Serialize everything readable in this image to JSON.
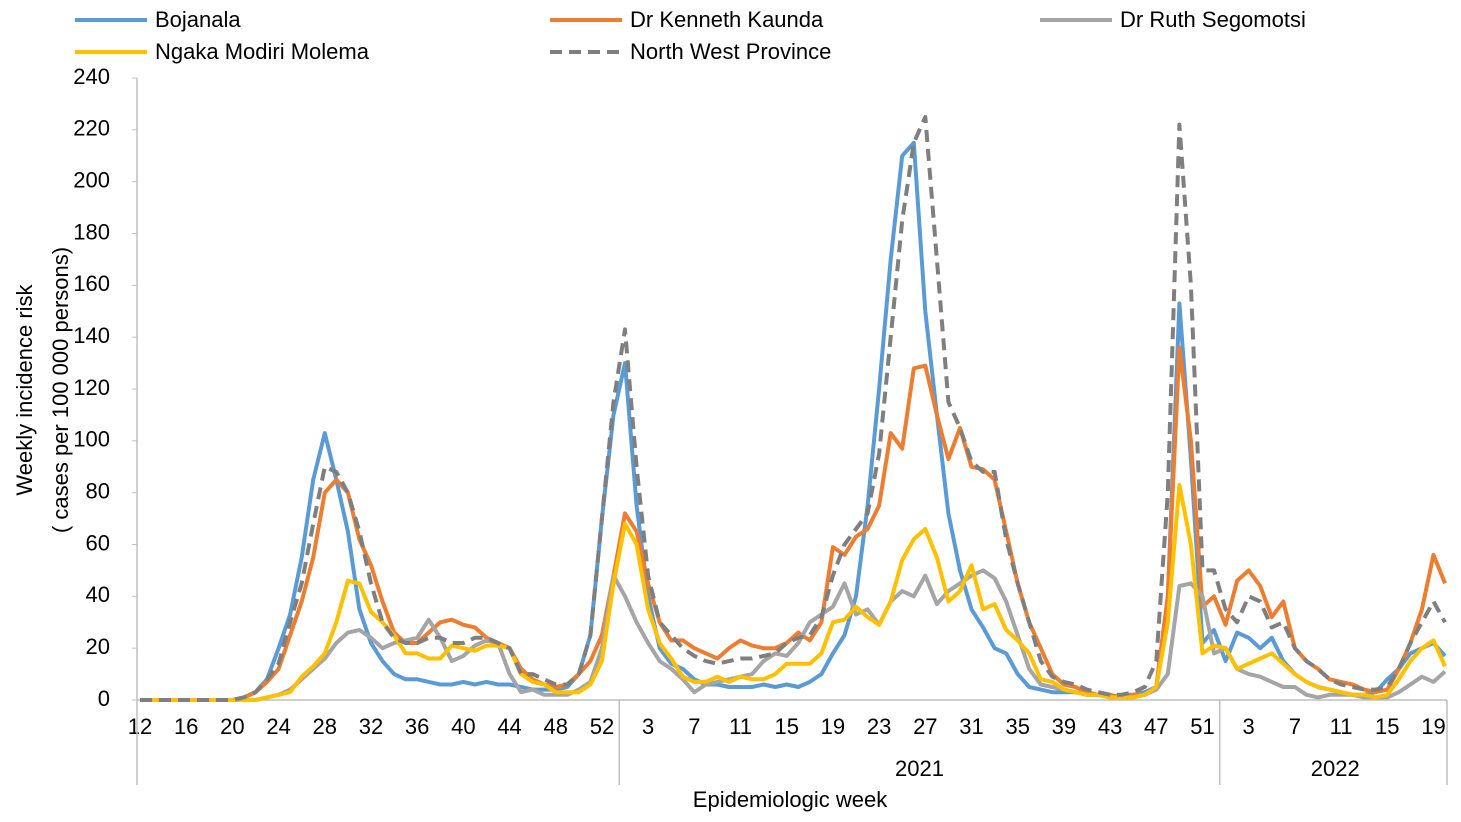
{
  "chart_data": {
    "type": "line",
    "x_label": "Epidemiologic week",
    "y_label": [
      "Weekly incidence risk",
      "( cases per 100 000 persons)"
    ],
    "categories": [
      "12",
      null,
      null,
      null,
      "16",
      null,
      null,
      null,
      "20",
      null,
      null,
      null,
      "24",
      null,
      null,
      null,
      "28",
      null,
      null,
      null,
      "32",
      null,
      null,
      null,
      "36",
      null,
      null,
      null,
      "40",
      null,
      null,
      null,
      "44",
      null,
      null,
      null,
      "48",
      null,
      null,
      null,
      "52",
      null,
      null,
      null,
      "3",
      null,
      null,
      null,
      "7",
      null,
      null,
      null,
      "11",
      null,
      null,
      null,
      "15",
      null,
      null,
      null,
      "19",
      null,
      null,
      null,
      "23",
      null,
      null,
      null,
      "27",
      null,
      null,
      null,
      "31",
      null,
      null,
      null,
      "35",
      null,
      null,
      null,
      "39",
      null,
      null,
      null,
      "43",
      null,
      null,
      null,
      "47",
      null,
      null,
      null,
      "51",
      null,
      null,
      null,
      "3",
      null,
      null,
      null,
      "7",
      null,
      null,
      null,
      "11",
      null,
      null,
      null,
      "15",
      null,
      null,
      null,
      "19",
      null
    ],
    "x_groups": [
      {
        "label": "2021",
        "span": [
          42,
          93
        ]
      },
      {
        "label": "2022",
        "span": [
          94,
          113
        ]
      }
    ],
    "ylim": [
      0,
      240
    ],
    "yticks": [
      0,
      20,
      40,
      60,
      80,
      100,
      120,
      140,
      160,
      180,
      200,
      220,
      240
    ],
    "series": [
      {
        "name": "Bojanala",
        "color": "#5b9bd5",
        "dashed": false,
        "values": [
          0,
          0,
          0,
          0,
          0,
          0,
          0,
          0,
          0,
          1,
          3,
          8,
          20,
          33,
          55,
          85,
          103,
          85,
          65,
          35,
          22,
          15,
          10,
          8,
          8,
          7,
          6,
          6,
          7,
          6,
          7,
          6,
          6,
          5,
          4,
          4,
          4,
          5,
          10,
          25,
          70,
          110,
          130,
          75,
          40,
          20,
          14,
          12,
          8,
          6,
          6,
          5,
          5,
          5,
          6,
          5,
          6,
          5,
          7,
          10,
          18,
          25,
          40,
          75,
          120,
          170,
          210,
          215,
          150,
          110,
          72,
          50,
          35,
          28,
          20,
          18,
          10,
          5,
          4,
          3,
          3,
          3,
          2,
          2,
          1,
          2,
          2,
          3,
          5,
          40,
          153,
          93,
          22,
          27,
          15,
          26,
          24,
          20,
          24,
          15,
          10,
          7,
          5,
          4,
          3,
          2,
          2,
          3,
          8,
          12,
          18,
          20,
          22,
          17
        ]
      },
      {
        "name": "Dr Kenneth Kaunda",
        "color": "#ed7d31",
        "dashed": false,
        "values": [
          0,
          0,
          0,
          0,
          0,
          0,
          0,
          0,
          0,
          1,
          3,
          7,
          12,
          25,
          38,
          55,
          80,
          85,
          80,
          62,
          52,
          38,
          26,
          22,
          22,
          26,
          30,
          31,
          29,
          28,
          24,
          22,
          20,
          12,
          8,
          6,
          5,
          6,
          10,
          15,
          25,
          48,
          72,
          65,
          45,
          30,
          23,
          23,
          20,
          18,
          16,
          20,
          23,
          21,
          20,
          20,
          22,
          26,
          23,
          30,
          59,
          56,
          63,
          66,
          75,
          103,
          97,
          128,
          129,
          110,
          93,
          105,
          90,
          89,
          85,
          65,
          45,
          30,
          20,
          10,
          6,
          5,
          3,
          2,
          2,
          1,
          2,
          2,
          5,
          40,
          136,
          100,
          36,
          40,
          29,
          46,
          50,
          44,
          32,
          38,
          20,
          15,
          12,
          8,
          7,
          6,
          4,
          3,
          4,
          12,
          22,
          35,
          56,
          45
        ]
      },
      {
        "name": "Dr Ruth Segomotsi",
        "color": "#a5a5a5",
        "dashed": false,
        "values": [
          0,
          0,
          0,
          0,
          0,
          0,
          0,
          0,
          0,
          0,
          0,
          1,
          2,
          4,
          8,
          12,
          16,
          22,
          26,
          27,
          24,
          20,
          22,
          23,
          24,
          31,
          24,
          15,
          17,
          21,
          23,
          22,
          10,
          3,
          4,
          2,
          2,
          2,
          4,
          7,
          20,
          48,
          40,
          30,
          22,
          15,
          12,
          8,
          3,
          6,
          7,
          8,
          9,
          10,
          15,
          18,
          17,
          22,
          30,
          33,
          36,
          45,
          33,
          35,
          29,
          38,
          42,
          40,
          48,
          37,
          42,
          45,
          48,
          50,
          47,
          38,
          25,
          12,
          6,
          5,
          4,
          3,
          2,
          2,
          1,
          1,
          1,
          2,
          4,
          10,
          44,
          45,
          40,
          18,
          20,
          12,
          10,
          9,
          7,
          5,
          5,
          2,
          1,
          2,
          2,
          2,
          1,
          1,
          1,
          3,
          6,
          9,
          7,
          11
        ]
      },
      {
        "name": "Ngaka Modiri Molema",
        "color": "#ffc000",
        "dashed": false,
        "values": [
          0,
          0,
          0,
          0,
          0,
          0,
          0,
          0,
          0,
          0,
          0,
          1,
          2,
          3,
          9,
          13,
          18,
          30,
          46,
          45,
          34,
          30,
          25,
          18,
          18,
          16,
          16,
          21,
          20,
          19,
          21,
          21,
          20,
          10,
          7,
          6,
          3,
          3,
          3,
          6,
          15,
          45,
          68,
          60,
          35,
          22,
          16,
          9,
          7,
          7,
          9,
          7,
          9,
          8,
          8,
          10,
          14,
          14,
          14,
          18,
          30,
          31,
          36,
          32,
          29,
          38,
          54,
          62,
          66,
          55,
          38,
          42,
          52,
          35,
          37,
          27,
          23,
          18,
          8,
          7,
          4,
          3,
          2,
          2,
          1,
          1,
          1,
          2,
          5,
          30,
          83,
          60,
          18,
          21,
          20,
          12,
          14,
          16,
          18,
          14,
          10,
          7,
          5,
          4,
          3,
          2,
          2,
          1,
          2,
          8,
          15,
          20,
          23,
          13
        ]
      },
      {
        "name": "North West Province",
        "color": "#7f7f7f",
        "dashed": true,
        "values": [
          0,
          0,
          0,
          0,
          0,
          0,
          0,
          0,
          0,
          1,
          3,
          8,
          14,
          30,
          45,
          68,
          90,
          88,
          80,
          65,
          45,
          30,
          24,
          22,
          22,
          24,
          24,
          22,
          22,
          24,
          24,
          22,
          20,
          10,
          10,
          8,
          6,
          6,
          10,
          25,
          70,
          115,
          143,
          90,
          48,
          30,
          25,
          20,
          17,
          15,
          14,
          15,
          16,
          16,
          17,
          18,
          22,
          24,
          25,
          32,
          48,
          60,
          66,
          72,
          95,
          140,
          185,
          215,
          225,
          170,
          115,
          105,
          92,
          88,
          88,
          62,
          45,
          30,
          15,
          9,
          7,
          6,
          4,
          3,
          2,
          2,
          3,
          5,
          15,
          80,
          222,
          160,
          50,
          50,
          35,
          30,
          40,
          38,
          28,
          30,
          20,
          15,
          12,
          8,
          6,
          5,
          4,
          4,
          5,
          12,
          22,
          30,
          38,
          30
        ]
      }
    ]
  }
}
